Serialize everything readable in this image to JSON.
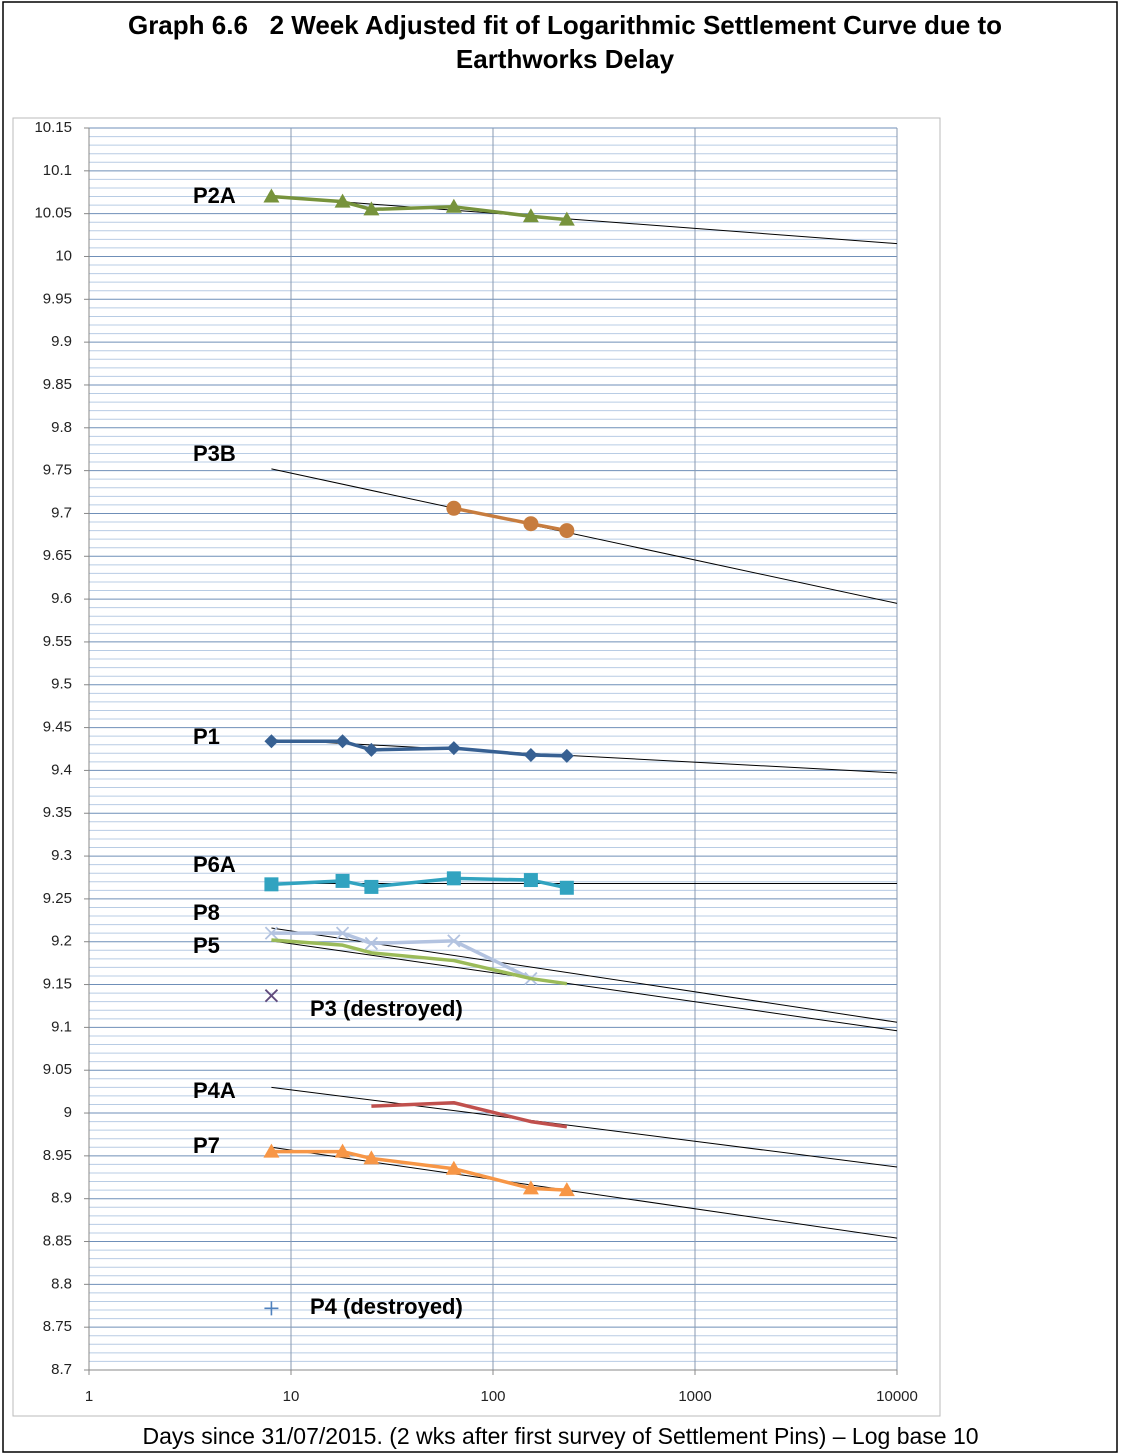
{
  "chart_data": {
    "type": "line",
    "title": "Graph 6.6   2 Week Adjusted fit of Logarithmic Settlement Curve due to Earthworks Delay",
    "x_label": "Days since 31/07/2015. (2 wks after first survey of Settlement Pins) – Log base 10",
    "x": [
      8,
      18,
      25,
      64,
      154,
      232
    ],
    "xlim": [
      1,
      10000
    ],
    "xticks": [
      1,
      10,
      100,
      1000,
      10000
    ],
    "x_log": true,
    "ylim": [
      8.7,
      10.15
    ],
    "yticks": [
      8.7,
      8.75,
      8.8,
      8.85,
      8.9,
      8.95,
      9,
      9.05,
      9.1,
      9.15,
      9.2,
      9.25,
      9.3,
      9.35,
      9.4,
      9.45,
      9.5,
      9.55,
      9.6,
      9.65,
      9.7,
      9.75,
      9.8,
      9.85,
      9.9,
      9.95,
      10,
      10.05,
      10.1,
      10.15
    ],
    "grid": true,
    "minor_grid_divisions": 5,
    "series": [
      {
        "name": "P2A",
        "color": "#77933c",
        "marker": "triangle",
        "values": [
          10.07,
          10.064,
          10.055,
          10.058,
          10.047,
          10.043
        ],
        "trend": {
          "x": [
            8,
            10000
          ],
          "values": [
            10.07,
            10.015
          ]
        }
      },
      {
        "name": "P3B",
        "color": "#c77c3e",
        "marker": "circle",
        "values": [
          null,
          null,
          null,
          9.706,
          9.688,
          9.68
        ],
        "trend": {
          "x": [
            8,
            10000
          ],
          "values": [
            9.752,
            9.595
          ]
        }
      },
      {
        "name": "P1",
        "color": "#376092",
        "marker": "diamond",
        "values": [
          9.434,
          9.434,
          9.424,
          9.426,
          9.418,
          9.417
        ],
        "trend": {
          "x": [
            8,
            10000
          ],
          "values": [
            9.436,
            9.397
          ]
        }
      },
      {
        "name": "P6A",
        "color": "#31a3c0",
        "marker": "square",
        "values": [
          9.267,
          9.271,
          9.264,
          9.274,
          9.272,
          9.263
        ],
        "trend": {
          "x": [
            8,
            10000
          ],
          "values": [
            9.268,
            9.268
          ]
        }
      },
      {
        "name": "P8",
        "color": "#b3c3e0",
        "marker": "x",
        "values": [
          9.21,
          9.21,
          9.198,
          9.201,
          9.157,
          null
        ],
        "trend": {
          "x": [
            8,
            10000
          ],
          "values": [
            9.216,
            9.106
          ]
        }
      },
      {
        "name": "P5",
        "color": "#9bbb59",
        "marker": "none",
        "values": [
          9.202,
          9.196,
          9.187,
          9.178,
          9.157,
          9.151
        ],
        "trend": {
          "x": [
            8,
            10000
          ],
          "values": [
            9.201,
            9.096
          ]
        }
      },
      {
        "name": "P3 (destroyed)",
        "color": "#604a7b",
        "marker": "x",
        "values": [
          9.137,
          null,
          null,
          null,
          null,
          null
        ]
      },
      {
        "name": "P4A",
        "color": "#c0504d",
        "marker": "none",
        "values": [
          null,
          null,
          9.008,
          9.012,
          8.99,
          8.984
        ],
        "trend": {
          "x": [
            8,
            10000
          ],
          "values": [
            9.03,
            8.937
          ]
        }
      },
      {
        "name": "P7",
        "color": "#f79646",
        "marker": "triangle",
        "values": [
          8.955,
          8.955,
          8.947,
          8.935,
          8.912,
          8.91
        ],
        "trend": {
          "x": [
            8,
            10000
          ],
          "values": [
            8.96,
            8.854
          ]
        }
      },
      {
        "name": "P4 (destroyed)",
        "color": "#4f81bd",
        "marker": "plus",
        "values": [
          8.772,
          null,
          null,
          null,
          null,
          null
        ]
      }
    ]
  }
}
